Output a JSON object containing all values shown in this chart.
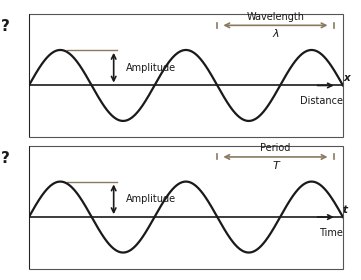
{
  "bg_color": "#ffffff",
  "wave_color": "#1a1a1a",
  "axis_color": "#1a1a1a",
  "annotation_color": "#8a7a60",
  "text_color": "#1a1a1a",
  "amplitude": 0.72,
  "cycles": 2.5,
  "panel1": {
    "title_wavelength": "Wavelength",
    "lambda_label": "λ",
    "amplitude_label": "Amplitude",
    "axis_label_x": "x",
    "axis_label_dist": "Distance",
    "question_mark": "?"
  },
  "panel2": {
    "title_period": "Period",
    "T_label": "T",
    "amplitude_label": "Amplitude",
    "axis_label_t": "t",
    "axis_label_time": "Time",
    "question_mark": "?"
  },
  "border_color": "#555555",
  "ylim": [
    -1.05,
    1.45
  ],
  "xlim": [
    0,
    1
  ]
}
